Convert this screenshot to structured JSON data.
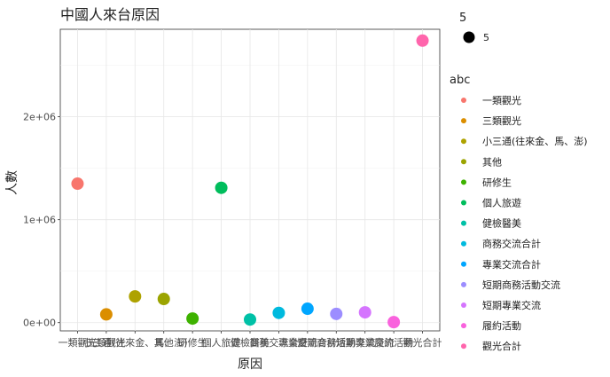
{
  "chart_data": {
    "type": "scatter",
    "title": "中國人來台原因",
    "xlabel": "原因",
    "ylabel": "人數",
    "ylim": [
      -80000,
      2850000
    ],
    "yticks": [
      0,
      1000000,
      2000000
    ],
    "ytick_labels": [
      "0e+00",
      "1e+06",
      "2e+06"
    ],
    "grid": true,
    "legend_position": "right",
    "categories": [
      "一類觀光",
      "三類觀光",
      "小三通(往來金、馬、澎)",
      "其他",
      "研修生",
      "個人旅遊",
      "健檢醫美",
      "商務交流合計",
      "專業交流合計",
      "短期商務活動交流",
      "短期專業交流",
      "履約活動",
      "觀光合計"
    ],
    "values": [
      1350000,
      80000,
      255000,
      230000,
      40000,
      1310000,
      30000,
      95000,
      135000,
      85000,
      100000,
      5000,
      2740000
    ],
    "colors": [
      "#F8766D",
      "#DB8E00",
      "#AEA200",
      "#9BA400",
      "#3EB200",
      "#00BD5C",
      "#00C1A7",
      "#00BADE",
      "#00A6FF",
      "#9C8DFF",
      "#D575FE",
      "#F962DD",
      "#FF65AC"
    ],
    "size_legend": {
      "title": "5",
      "label": "5"
    },
    "color_legend_title": "abc"
  }
}
